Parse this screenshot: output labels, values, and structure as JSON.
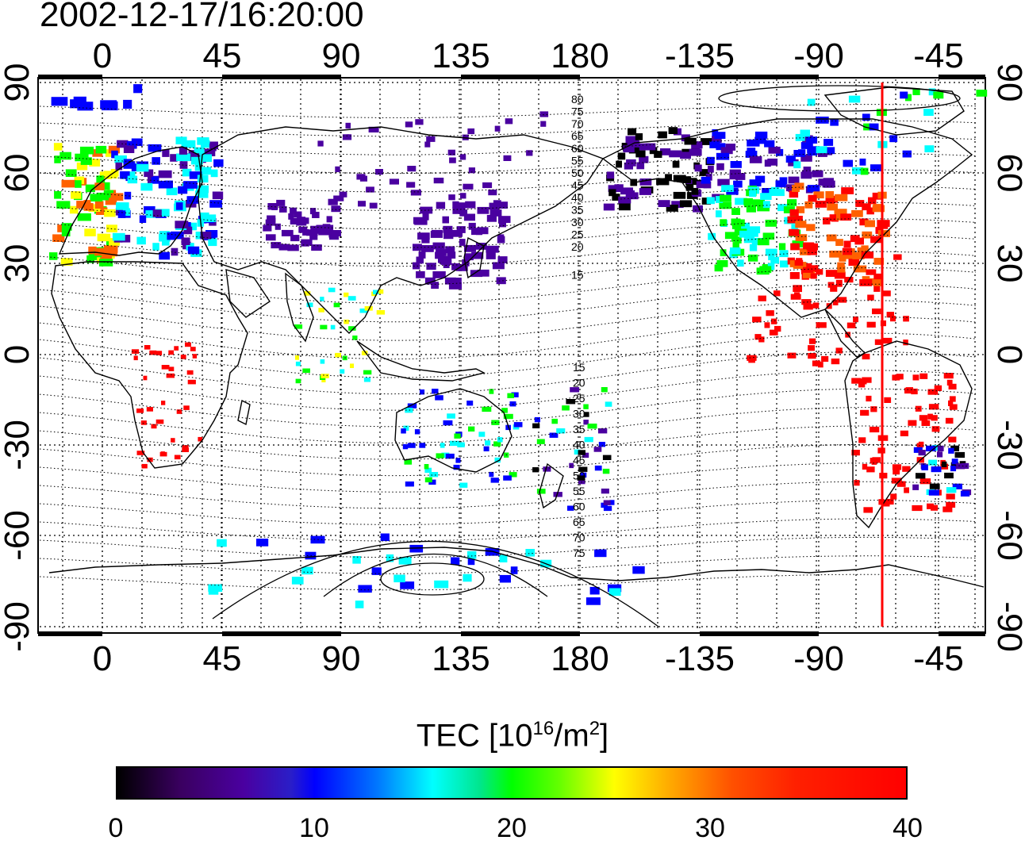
{
  "timestamp": "2002-12-17/16:20:00",
  "map": {
    "lon_top_labels": [
      "0",
      "45",
      "90",
      "135",
      "180",
      "-135",
      "-90",
      "-45"
    ],
    "lon_bottom_labels": [
      "0",
      "45",
      "90",
      "135",
      "180",
      "-135",
      "-90",
      "-45"
    ],
    "lat_left_labels": [
      "90",
      "60",
      "30",
      "0",
      "-30",
      "-60",
      "-90"
    ],
    "lat_right_labels": [
      "90",
      "60",
      "30",
      "0",
      "-30",
      "-60",
      "-90"
    ],
    "contour_labels_north": [
      "80",
      "75",
      "70",
      "65",
      "60",
      "55",
      "50",
      "45",
      "40",
      "35",
      "30",
      "25",
      "20",
      "15"
    ],
    "contour_labels_south": [
      "15",
      "20",
      "25",
      "30",
      "35",
      "40",
      "45",
      "50",
      "55",
      "60",
      "65",
      "70",
      "75"
    ],
    "marker_line_color": "#ff0000"
  },
  "colorbar": {
    "title": "TEC  [10",
    "title_sup1": "16",
    "title_mid": "/m",
    "title_sup2": "2",
    "title_end": "]",
    "ticks": [
      "0",
      "10",
      "20",
      "30",
      "40"
    ],
    "colors": [
      "#000000",
      "#4a00a0",
      "#0000ff",
      "#00ffff",
      "#00ff00",
      "#ffff00",
      "#ff6000",
      "#ff0000"
    ]
  }
}
